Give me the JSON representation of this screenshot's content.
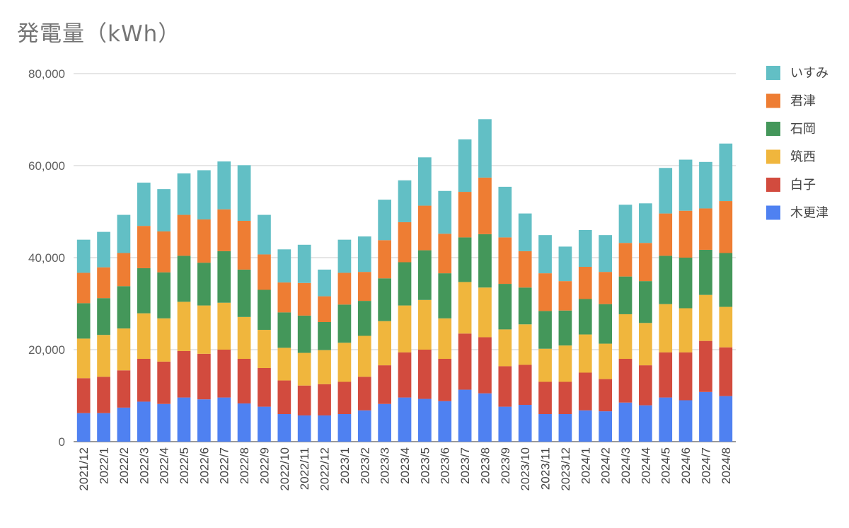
{
  "chart_data": {
    "type": "bar",
    "stacked": true,
    "title": "発電量（kWh）",
    "xlabel": "",
    "ylabel": "",
    "ylim": [
      0,
      80000
    ],
    "yticks": [
      "0",
      "20,000",
      "40,000",
      "60,000",
      "80,000"
    ],
    "grid": true,
    "legend_position": "right",
    "categories": [
      "2021/12",
      "2022/1",
      "2022/2",
      "2022/3",
      "2022/4",
      "2022/5",
      "2022/6",
      "2022/7",
      "2022/8",
      "2022/9",
      "2022/10",
      "2022/11",
      "2022/12",
      "2023/1",
      "2023/2",
      "2023/3",
      "2023/4",
      "2023/5",
      "2023/6",
      "2023/7",
      "2023/8",
      "2023/9",
      "2023/10",
      "2023/11",
      "2023/12",
      "2024/1",
      "2024/2",
      "2024/3",
      "2024/4",
      "2024/5",
      "2024/6",
      "2024/7",
      "2024/8"
    ],
    "series": [
      {
        "name": "木更津",
        "color": "#4f81f1",
        "values": [
          6200,
          6200,
          7400,
          8700,
          8200,
          9600,
          9200,
          9600,
          8300,
          7600,
          6000,
          5700,
          5700,
          6000,
          6800,
          8200,
          9600,
          9300,
          8800,
          11300,
          10500,
          7600,
          8000,
          6000,
          6000,
          6800,
          6600,
          8500,
          7900,
          9600,
          9000,
          10800,
          9900
        ]
      },
      {
        "name": "白子",
        "color": "#d24b3e",
        "values": [
          7600,
          7900,
          8100,
          9300,
          9200,
          10100,
          9900,
          10400,
          9700,
          8400,
          7300,
          6500,
          6800,
          7000,
          7300,
          8400,
          9800,
          10700,
          9200,
          12200,
          12200,
          8800,
          8700,
          7000,
          7000,
          8200,
          7000,
          9500,
          8700,
          9800,
          10400,
          11100,
          10600
        ]
      },
      {
        "name": "筑西",
        "color": "#f0b63d",
        "values": [
          8600,
          9100,
          9100,
          9900,
          9400,
          10700,
          10500,
          10200,
          9100,
          8300,
          7100,
          7100,
          7400,
          8500,
          8900,
          9600,
          10200,
          10800,
          8800,
          11200,
          10800,
          8000,
          8800,
          7200,
          7900,
          8300,
          7700,
          9700,
          9200,
          10500,
          9600,
          10000,
          8800
        ]
      },
      {
        "name": "石岡",
        "color": "#44975a",
        "values": [
          7700,
          8000,
          9200,
          9800,
          10000,
          10000,
          9300,
          11200,
          10300,
          8700,
          7700,
          8100,
          6100,
          8300,
          7600,
          9300,
          9400,
          10800,
          9800,
          9700,
          11600,
          9900,
          8000,
          8200,
          7600,
          7700,
          8600,
          8200,
          9100,
          10500,
          11000,
          9800,
          11700
        ]
      },
      {
        "name": "君津",
        "color": "#ee7d33",
        "values": [
          6600,
          6700,
          7200,
          9200,
          8900,
          8900,
          9400,
          9100,
          10600,
          7700,
          6500,
          7100,
          5600,
          6900,
          6300,
          8300,
          8700,
          9700,
          8600,
          9900,
          12300,
          10100,
          7900,
          8200,
          6400,
          7000,
          7000,
          7300,
          8300,
          9200,
          10200,
          9000,
          11300
        ]
      },
      {
        "name": "いすみ",
        "color": "#62bfc5",
        "values": [
          7200,
          7700,
          8300,
          9400,
          9200,
          9000,
          10700,
          10400,
          12100,
          8600,
          7200,
          8300,
          5800,
          7200,
          7700,
          8800,
          9100,
          10500,
          9300,
          11400,
          12700,
          11000,
          8200,
          8300,
          7500,
          8000,
          8000,
          8300,
          8600,
          9900,
          11100,
          10100,
          12500
        ]
      }
    ]
  }
}
